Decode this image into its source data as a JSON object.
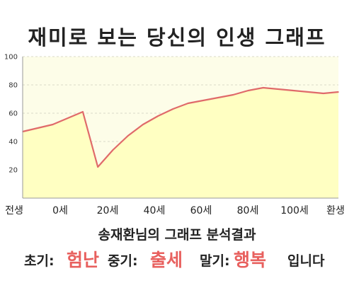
{
  "title": "재미로 보는 당신의 인생 그래프",
  "chart_data": {
    "type": "area",
    "x": [
      0,
      10,
      20,
      25,
      30,
      35,
      40,
      45,
      50,
      55,
      60,
      65,
      70,
      75,
      80,
      85,
      90,
      95,
      100,
      105
    ],
    "y": [
      47,
      52,
      61,
      22,
      34,
      44,
      52,
      58,
      63,
      67,
      69,
      71,
      73,
      76,
      78,
      77,
      76,
      75,
      74,
      75
    ],
    "xtick_labels": [
      "전생",
      "0세",
      "20세",
      "40세",
      "60세",
      "80세",
      "100세",
      "환생"
    ],
    "ytick_labels": [
      "20",
      "40",
      "60",
      "80",
      "100"
    ],
    "ylim": [
      0,
      100
    ],
    "grid": true,
    "colors": {
      "line": "#e06a6a",
      "fill": "#ffffc2",
      "plot_bg": "#fdfde8",
      "grid": "#d9d9c8",
      "accent": "#e8605e"
    }
  },
  "summary": "송재환님의 그래프 분석결과",
  "result": {
    "early_label": "초기:",
    "early_value": "험난",
    "mid_label": "중기:",
    "mid_value": "출세",
    "late_label": "말기:",
    "late_value": "행복",
    "ending": "입니다"
  }
}
